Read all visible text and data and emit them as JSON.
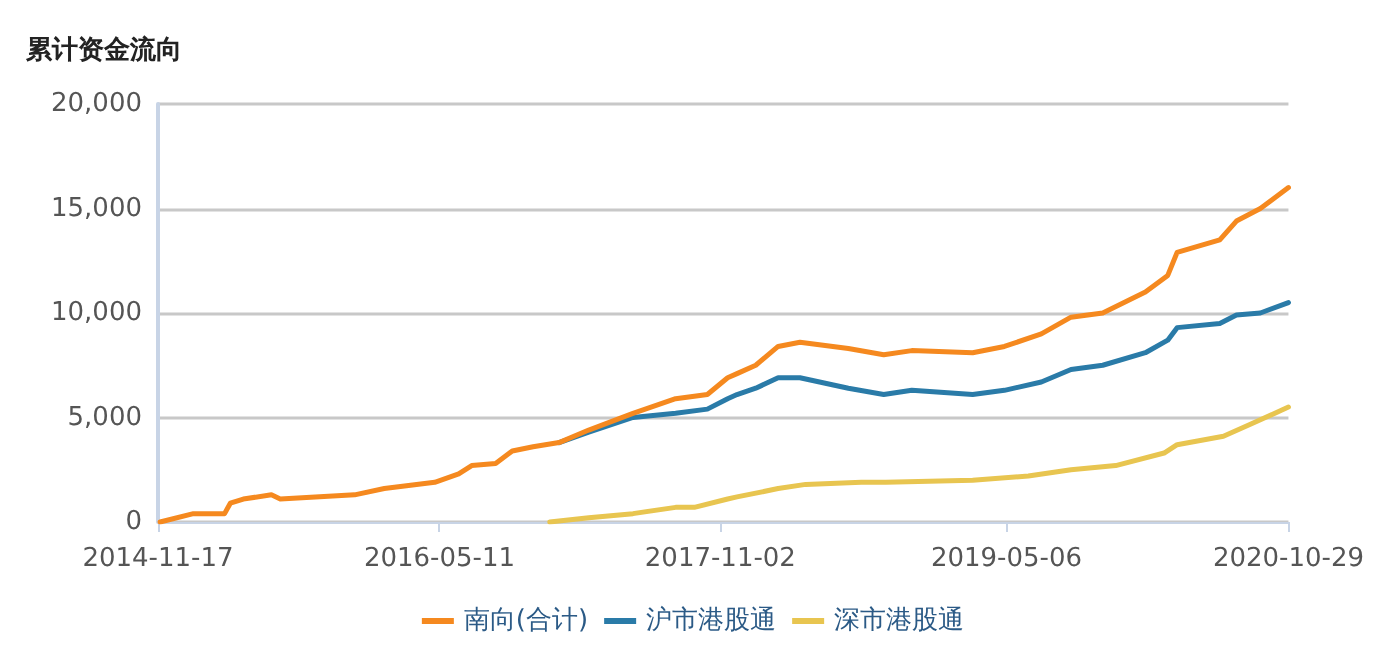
{
  "chart_data": {
    "type": "line",
    "title": "累计资金流向",
    "xlim": [
      "2014-11-17",
      "2020-10-29"
    ],
    "xticks": [
      "2014-11-17",
      "2016-05-11",
      "2017-11-02",
      "2019-05-06",
      "2020-10-29"
    ],
    "ylim": [
      0,
      20000
    ],
    "yticks": [
      0,
      {
        "value": 5000,
        "label": "5,000"
      },
      {
        "value": 10000,
        "label": "10,000"
      },
      {
        "value": 15000,
        "label": "15,000"
      },
      {
        "value": 20000,
        "label": "20,000"
      }
    ],
    "grid": "y",
    "legend": "bottom",
    "marker": "none",
    "line_style": "solid",
    "series": [
      {
        "name": "南向(合计)",
        "color": "#f5891f",
        "x": [
          "2014-11-21",
          "2015-01-24",
          "2015-03-25",
          "2015-04-05",
          "2015-04-30",
          "2015-06-23",
          "2015-07-10",
          "2015-11-30",
          "2016-01-26",
          "2016-05-02",
          "2016-06-17",
          "2016-07-12",
          "2016-08-27",
          "2016-09-28",
          "2016-11-07",
          "2016-12-27",
          "2017-02-22",
          "2017-05-18",
          "2017-08-08",
          "2017-10-08",
          "2017-11-16",
          "2017-12-04",
          "2018-01-09",
          "2018-02-21",
          "2018-04-04",
          "2018-07-06",
          "2018-09-12",
          "2018-11-05",
          "2019-03-02",
          "2019-05-02",
          "2019-07-12",
          "2019-09-07",
          "2019-11-07",
          "2020-01-28",
          "2020-03-11",
          "2020-03-29",
          "2020-06-19",
          "2020-07-21",
          "2020-09-05",
          "2020-10-29"
        ],
        "values": [
          0,
          400,
          400,
          900,
          1100,
          1300,
          1100,
          1300,
          1600,
          1900,
          2300,
          2700,
          2800,
          3400,
          3600,
          3800,
          4400,
          5200,
          5900,
          6100,
          6900,
          7100,
          7500,
          8400,
          8600,
          8300,
          8000,
          8200,
          8100,
          8400,
          9000,
          9800,
          10000,
          11000,
          11800,
          12900,
          13500,
          14400,
          15000,
          16000
        ]
      },
      {
        "name": "沪市港股通",
        "color": "#2a7ba8",
        "x": [
          "2016-12-27",
          "2017-02-22",
          "2017-05-18",
          "2017-08-08",
          "2017-10-08",
          "2017-11-16",
          "2017-12-04",
          "2018-01-09",
          "2018-02-21",
          "2018-04-04",
          "2018-07-06",
          "2018-09-12",
          "2018-11-05",
          "2019-03-02",
          "2019-05-02",
          "2019-07-12",
          "2019-09-07",
          "2019-11-07",
          "2020-01-28",
          "2020-03-11",
          "2020-03-29",
          "2020-06-19",
          "2020-07-21",
          "2020-09-05",
          "2020-10-29"
        ],
        "values": [
          3800,
          4300,
          5000,
          5200,
          5400,
          5900,
          6100,
          6400,
          6900,
          6900,
          6400,
          6100,
          6300,
          6100,
          6300,
          6700,
          7300,
          7500,
          8100,
          8700,
          9300,
          9500,
          9900,
          10000,
          10500
        ]
      },
      {
        "name": "深市港股通",
        "color": "#e8c550",
        "x": [
          "2016-12-09",
          "2017-02-22",
          "2017-05-18",
          "2017-08-08",
          "2017-09-13",
          "2017-11-16",
          "2017-12-04",
          "2018-02-21",
          "2018-04-15",
          "2018-07-31",
          "2018-09-16",
          "2019-03-02",
          "2019-06-17",
          "2019-09-07",
          "2019-12-02",
          "2020-03-04",
          "2020-03-29",
          "2020-06-26",
          "2020-08-19",
          "2020-10-29"
        ],
        "values": [
          0,
          200,
          400,
          700,
          700,
          1100,
          1200,
          1600,
          1800,
          1900,
          1900,
          2000,
          2200,
          2500,
          2700,
          3300,
          3700,
          4100,
          4700,
          5500
        ]
      }
    ]
  }
}
